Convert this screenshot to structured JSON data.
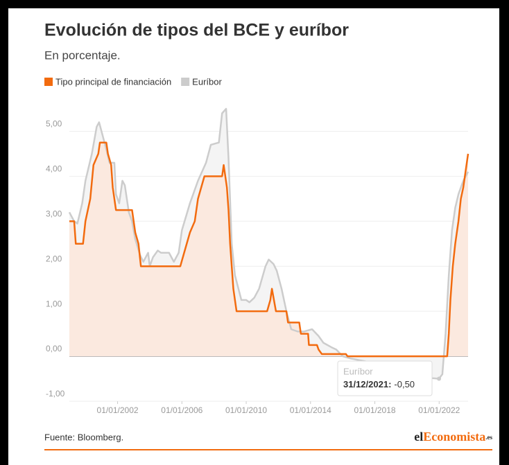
{
  "chart_data": {
    "type": "line",
    "title": "Evolución de tipos del BCE y euríbor",
    "subtitle": "En porcentaje.",
    "source": "Fuente: Bloomberg.",
    "logo": {
      "prefix": "el",
      "main": "Economista",
      "suffix": ".es"
    },
    "xlim": [
      1999,
      2023.8
    ],
    "xticks": [
      {
        "value": 2002,
        "label": "01/01/2002"
      },
      {
        "value": 2006,
        "label": "01/01/2006"
      },
      {
        "value": 2010,
        "label": "01/01/2010"
      },
      {
        "value": 2014,
        "label": "01/01/2014"
      },
      {
        "value": 2018,
        "label": "01/01/2018"
      },
      {
        "value": 2022,
        "label": "01/01/2022"
      }
    ],
    "ylim": [
      -1,
      5.5
    ],
    "yticks": [
      {
        "value": -1,
        "label": "-1,00"
      },
      {
        "value": 0,
        "label": "0,00"
      },
      {
        "value": 1,
        "label": "1,00"
      },
      {
        "value": 2,
        "label": "2,00"
      },
      {
        "value": 3,
        "label": "3,00"
      },
      {
        "value": 4,
        "label": "4,00"
      },
      {
        "value": 5,
        "label": "5,00"
      }
    ],
    "grid": true,
    "series": [
      {
        "name": "Tipo principal de financiación",
        "color": "#f26b0f",
        "fill": "#fce6da",
        "x": [
          1999.0,
          1999.3,
          1999.4,
          1999.85,
          2000.0,
          2000.3,
          2000.5,
          2000.8,
          2000.9,
          2001.3,
          2001.4,
          2001.6,
          2001.7,
          2001.9,
          2002.9,
          2003.1,
          2003.3,
          2003.45,
          2005.9,
          2006.1,
          2006.3,
          2006.5,
          2006.8,
          2007.0,
          2007.4,
          2008.5,
          2008.6,
          2008.8,
          2008.9,
          2009.0,
          2009.2,
          2009.4,
          2011.3,
          2011.5,
          2011.6,
          2011.85,
          2012.5,
          2012.6,
          2013.3,
          2013.4,
          2013.85,
          2013.9,
          2014.4,
          2014.5,
          2014.7,
          2016.2,
          2016.3,
          2022.5,
          2022.6,
          2022.7,
          2022.85,
          2023.0,
          2023.2,
          2023.35,
          2023.5,
          2023.7,
          2023.8
        ],
        "values": [
          3.0,
          3.0,
          2.5,
          2.5,
          3.0,
          3.5,
          4.25,
          4.5,
          4.75,
          4.75,
          4.5,
          4.25,
          3.75,
          3.25,
          3.25,
          2.75,
          2.5,
          2.0,
          2.0,
          2.25,
          2.5,
          2.75,
          3.0,
          3.5,
          4.0,
          4.0,
          4.25,
          3.75,
          3.25,
          2.5,
          1.5,
          1.0,
          1.0,
          1.25,
          1.5,
          1.0,
          1.0,
          0.75,
          0.75,
          0.5,
          0.5,
          0.25,
          0.25,
          0.15,
          0.05,
          0.05,
          0.0,
          0.0,
          0.5,
          1.25,
          2.0,
          2.5,
          3.0,
          3.5,
          3.75,
          4.25,
          4.5
        ]
      },
      {
        "name": "Euríbor",
        "color": "#cccccc",
        "fill": "#f4f4f4",
        "x": [
          1999.0,
          1999.3,
          1999.5,
          1999.8,
          2000.0,
          2000.4,
          2000.7,
          2000.85,
          2001.0,
          2001.3,
          2001.5,
          2001.8,
          2001.9,
          2002.1,
          2002.3,
          2002.45,
          2002.7,
          2002.9,
          2003.1,
          2003.4,
          2003.6,
          2003.9,
          2004.0,
          2004.2,
          2004.4,
          2004.5,
          2004.7,
          2005.2,
          2005.5,
          2005.8,
          2006.0,
          2006.5,
          2007.0,
          2007.5,
          2007.8,
          2008.3,
          2008.5,
          2008.75,
          2008.9,
          2009.1,
          2009.3,
          2009.7,
          2010.0,
          2010.2,
          2010.5,
          2010.8,
          2011.2,
          2011.4,
          2011.7,
          2011.9,
          2012.2,
          2012.5,
          2012.8,
          2013.2,
          2013.6,
          2014.1,
          2014.5,
          2014.8,
          2015.3,
          2015.6,
          2016.0,
          2016.5,
          2017.5,
          2018.5,
          2019.5,
          2020.5,
          2021.0,
          2021.99,
          2022.2,
          2022.4,
          2022.6,
          2022.8,
          2023.0,
          2023.2,
          2023.5,
          2023.8
        ],
        "values": [
          3.2,
          3.0,
          2.95,
          3.4,
          3.9,
          4.5,
          5.1,
          5.2,
          5.0,
          4.6,
          4.3,
          4.3,
          3.6,
          3.4,
          3.9,
          3.8,
          3.2,
          3.0,
          2.6,
          2.25,
          2.1,
          2.3,
          2.0,
          2.2,
          2.3,
          2.35,
          2.3,
          2.3,
          2.1,
          2.3,
          2.8,
          3.4,
          3.9,
          4.3,
          4.7,
          4.75,
          5.4,
          5.5,
          4.4,
          2.5,
          1.8,
          1.25,
          1.25,
          1.2,
          1.3,
          1.5,
          2.0,
          2.15,
          2.05,
          1.9,
          1.5,
          1.0,
          0.6,
          0.55,
          0.55,
          0.6,
          0.45,
          0.3,
          0.2,
          0.15,
          0.0,
          -0.05,
          -0.12,
          -0.17,
          -0.28,
          -0.4,
          -0.47,
          -0.5,
          -0.4,
          0.5,
          1.8,
          2.8,
          3.3,
          3.6,
          3.9,
          4.1
        ]
      }
    ],
    "tooltip": {
      "series": "Euríbor",
      "date": "31/12/2021:",
      "x": 2021.99,
      "value": -0.5,
      "value_label": "-0,50"
    }
  }
}
